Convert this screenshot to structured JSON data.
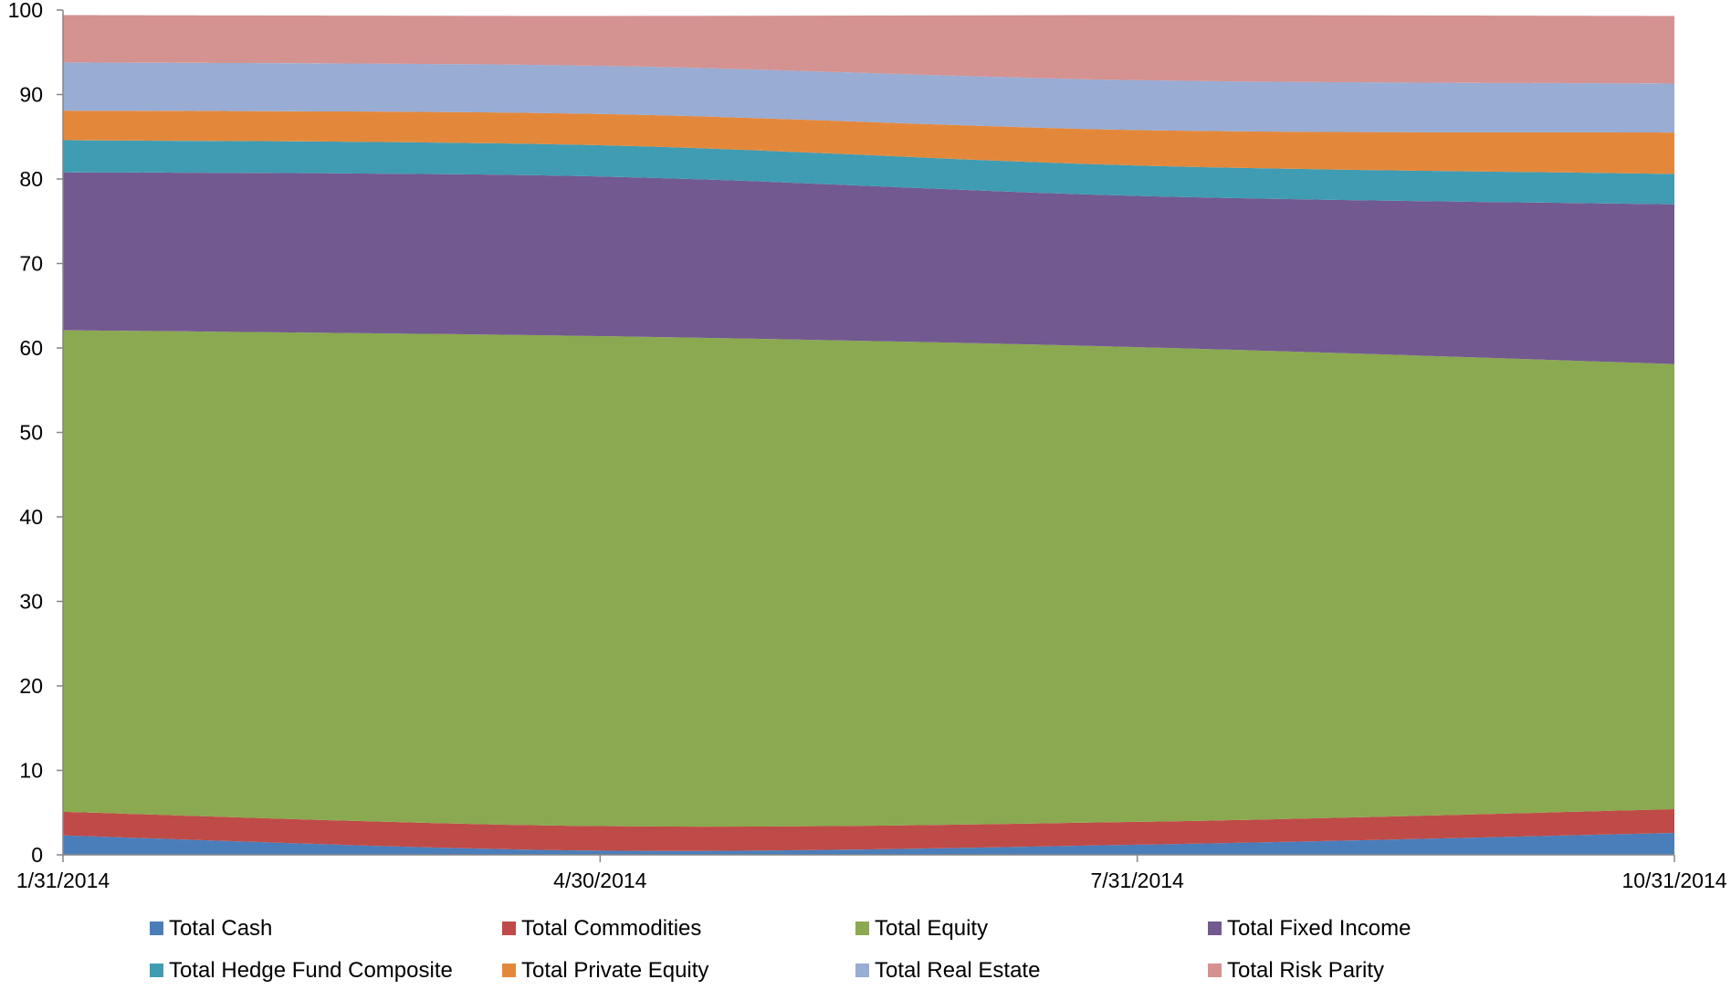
{
  "chart_data": {
    "type": "area",
    "stacked": true,
    "title": "",
    "xlabel": "",
    "ylabel": "",
    "categories": [
      "1/31/2014",
      "4/30/2014",
      "7/31/2014",
      "10/31/2014"
    ],
    "ylim": [
      0,
      100
    ],
    "yticks": [
      0,
      10,
      20,
      30,
      40,
      50,
      60,
      70,
      80,
      90,
      100
    ],
    "grid": false,
    "legend_position": "bottom",
    "series": [
      {
        "name": "Total Cash",
        "color": "#4a7ebb",
        "values": [
          2.3,
          0.5,
          1.2,
          2.6
        ]
      },
      {
        "name": "Total Commodities",
        "color": "#be4b48",
        "values": [
          2.8,
          2.9,
          2.7,
          2.8
        ]
      },
      {
        "name": "Total Equity",
        "color": "#8ba950",
        "values": [
          57.0,
          58.0,
          56.2,
          52.7
        ]
      },
      {
        "name": "Total Fixed Income",
        "color": "#725990",
        "values": [
          18.7,
          18.9,
          17.9,
          18.9
        ]
      },
      {
        "name": "Total Hedge Fund Composite",
        "color": "#3f9cb2",
        "values": [
          3.8,
          3.7,
          3.6,
          3.6
        ]
      },
      {
        "name": "Total Private Equity",
        "color": "#e3883b",
        "values": [
          3.5,
          3.7,
          4.2,
          4.9
        ]
      },
      {
        "name": "Total Real Estate",
        "color": "#98acd4",
        "values": [
          5.7,
          5.7,
          5.9,
          5.8
        ]
      },
      {
        "name": "Total Risk Parity",
        "color": "#d49290",
        "values": [
          5.6,
          5.9,
          7.7,
          8.0
        ]
      }
    ]
  }
}
